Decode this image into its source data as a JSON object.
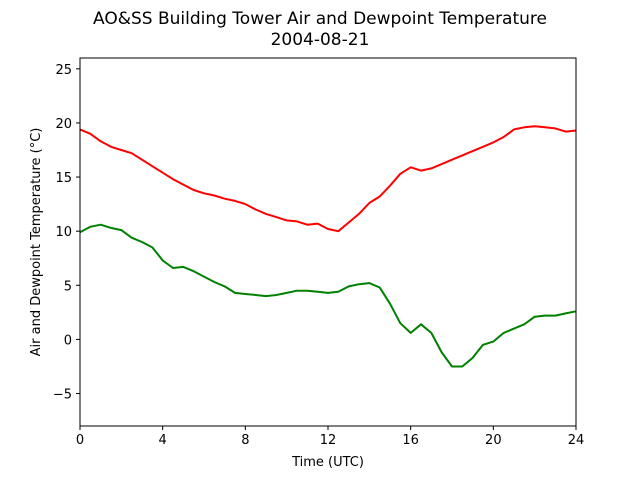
{
  "chart_data": {
    "type": "line",
    "title": "AO&SS Building Tower Air and Dewpoint Temperature",
    "subtitle": "2004-08-21",
    "xlabel": "Time (UTC)",
    "ylabel": "Air and Dewpoint Temperature (°C)",
    "xlim": [
      0,
      24
    ],
    "ylim": [
      -8,
      26
    ],
    "xticks": [
      0,
      4,
      8,
      12,
      16,
      20,
      24
    ],
    "yticks": [
      -5,
      0,
      5,
      10,
      15,
      20,
      25
    ],
    "grid": false,
    "legend": "none",
    "series": [
      {
        "color": "#ff0000",
        "x": [
          0,
          0.5,
          1,
          1.5,
          2,
          2.5,
          3,
          3.5,
          4,
          4.5,
          5,
          5.5,
          6,
          6.5,
          7,
          7.5,
          8,
          8.5,
          9,
          9.5,
          10,
          10.5,
          11,
          11.5,
          12,
          12.5,
          13,
          13.5,
          14,
          14.5,
          15,
          15.5,
          16,
          16.5,
          17,
          17.5,
          18,
          18.5,
          19,
          19.5,
          20,
          20.5,
          21,
          21.5,
          22,
          22.5,
          23,
          23.5,
          24
        ],
        "y": [
          19.4,
          19.0,
          18.3,
          17.8,
          17.5,
          17.2,
          16.6,
          16.0,
          15.4,
          14.8,
          14.3,
          13.8,
          13.5,
          13.3,
          13.0,
          12.8,
          12.5,
          12.0,
          11.6,
          11.3,
          11.0,
          10.9,
          10.6,
          10.7,
          10.2,
          10.0,
          10.8,
          11.6,
          12.6,
          13.2,
          14.2,
          15.3,
          15.9,
          15.6,
          15.8,
          16.2,
          16.6,
          17.0,
          17.4,
          17.8,
          18.2,
          18.7,
          19.4,
          19.6,
          19.7,
          19.6,
          19.5,
          19.2,
          19.3
        ]
      },
      {
        "color": "#008000",
        "x": [
          0,
          0.5,
          1,
          1.5,
          2,
          2.5,
          3,
          3.5,
          4,
          4.5,
          5,
          5.5,
          6,
          6.5,
          7,
          7.5,
          8,
          8.5,
          9,
          9.5,
          10,
          10.5,
          11,
          11.5,
          12,
          12.5,
          13,
          13.5,
          14,
          14.5,
          15,
          15.5,
          16,
          16.5,
          17,
          17.5,
          18,
          18.5,
          19,
          19.5,
          20,
          20.5,
          21,
          21.5,
          22,
          22.5,
          23,
          23.5,
          24
        ],
        "y": [
          9.9,
          10.4,
          10.6,
          10.3,
          10.1,
          9.4,
          9.0,
          8.5,
          7.3,
          6.6,
          6.7,
          6.3,
          5.8,
          5.3,
          4.9,
          4.3,
          4.2,
          4.1,
          4.0,
          4.1,
          4.3,
          4.5,
          4.5,
          4.4,
          4.3,
          4.4,
          4.9,
          5.1,
          5.2,
          4.8,
          3.3,
          1.5,
          0.6,
          1.4,
          0.6,
          -1.2,
          -2.5,
          -2.5,
          -1.7,
          -0.5,
          -0.2,
          0.6,
          1.0,
          1.4,
          2.1,
          2.2,
          2.2,
          2.4,
          2.6
        ]
      }
    ]
  }
}
